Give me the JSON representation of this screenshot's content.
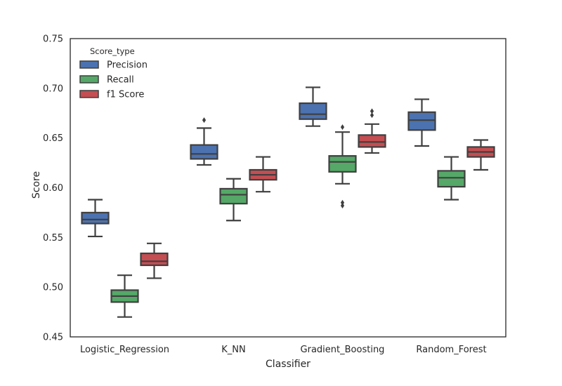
{
  "chart_data": {
    "type": "box",
    "xlabel": "Classifier",
    "ylabel": "Score",
    "ylim": [
      0.45,
      0.75
    ],
    "yticks": [
      "0.45",
      "0.50",
      "0.55",
      "0.60",
      "0.65",
      "0.70",
      "0.75"
    ],
    "grid": false,
    "legend": {
      "title": "Score_type",
      "placement": "top-left",
      "entries": [
        "Precision",
        "Recall",
        "f1 Score"
      ]
    },
    "categories": [
      "Logistic_Regression",
      "K_NN",
      "Gradient_Boosting",
      "Random_Forest"
    ],
    "series": [
      {
        "name": "Precision",
        "color": "#4c72b0",
        "boxes": [
          {
            "whisker_low": 0.551,
            "q1": 0.564,
            "median": 0.568,
            "q3": 0.575,
            "whisker_high": 0.588,
            "outliers": []
          },
          {
            "whisker_low": 0.623,
            "q1": 0.629,
            "median": 0.634,
            "q3": 0.643,
            "whisker_high": 0.66,
            "outliers": [
              0.668
            ]
          },
          {
            "whisker_low": 0.662,
            "q1": 0.669,
            "median": 0.674,
            "q3": 0.685,
            "whisker_high": 0.701,
            "outliers": []
          },
          {
            "whisker_low": 0.642,
            "q1": 0.658,
            "median": 0.668,
            "q3": 0.676,
            "whisker_high": 0.689,
            "outliers": []
          }
        ]
      },
      {
        "name": "Recall",
        "color": "#55a868",
        "boxes": [
          {
            "whisker_low": 0.47,
            "q1": 0.485,
            "median": 0.491,
            "q3": 0.497,
            "whisker_high": 0.512,
            "outliers": []
          },
          {
            "whisker_low": 0.567,
            "q1": 0.584,
            "median": 0.593,
            "q3": 0.599,
            "whisker_high": 0.609,
            "outliers": []
          },
          {
            "whisker_low": 0.604,
            "q1": 0.616,
            "median": 0.626,
            "q3": 0.632,
            "whisker_high": 0.656,
            "outliers": [
              0.661,
              0.582,
              0.585
            ]
          },
          {
            "whisker_low": 0.588,
            "q1": 0.601,
            "median": 0.61,
            "q3": 0.617,
            "whisker_high": 0.631,
            "outliers": []
          }
        ]
      },
      {
        "name": "f1 Score",
        "color": "#c44e52",
        "boxes": [
          {
            "whisker_low": 0.509,
            "q1": 0.522,
            "median": 0.526,
            "q3": 0.534,
            "whisker_high": 0.544,
            "outliers": []
          },
          {
            "whisker_low": 0.596,
            "q1": 0.608,
            "median": 0.613,
            "q3": 0.618,
            "whisker_high": 0.631,
            "outliers": []
          },
          {
            "whisker_low": 0.635,
            "q1": 0.641,
            "median": 0.646,
            "q3": 0.653,
            "whisker_high": 0.664,
            "outliers": [
              0.673,
              0.677
            ]
          },
          {
            "whisker_low": 0.618,
            "q1": 0.631,
            "median": 0.636,
            "q3": 0.641,
            "whisker_high": 0.648,
            "outliers": []
          }
        ]
      }
    ]
  }
}
